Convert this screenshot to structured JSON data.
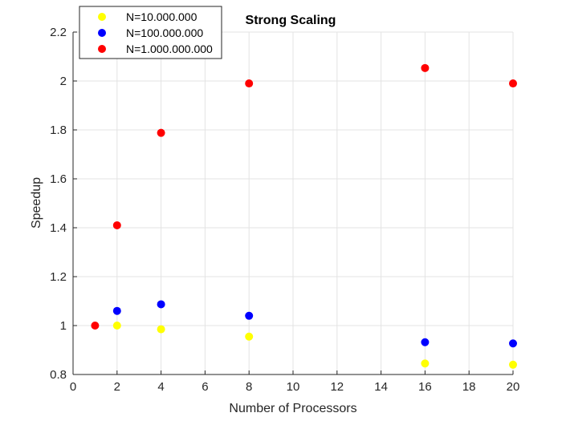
{
  "chart_data": {
    "type": "scatter",
    "title": "Strong Scaling",
    "xlabel": "Number of Processors",
    "ylabel": "Speedup",
    "xlim": [
      0,
      20
    ],
    "ylim": [
      0.8,
      2.2
    ],
    "xticks": [
      "0",
      "2",
      "4",
      "6",
      "8",
      "10",
      "12",
      "14",
      "16",
      "18",
      "20"
    ],
    "yticks": [
      "0.8",
      "1",
      "1.2",
      "1.4",
      "1.6",
      "1.8",
      "2",
      "2.2"
    ],
    "grid": true,
    "legend_position": "top-left",
    "series": [
      {
        "name": "N=10.000.000",
        "color": "#ffff00",
        "points": [
          [
            2,
            1.0
          ],
          [
            4,
            0.985
          ],
          [
            8,
            0.955
          ],
          [
            16,
            0.845
          ],
          [
            20,
            0.84
          ]
        ]
      },
      {
        "name": "N=100.000.000",
        "color": "#0000ff",
        "points": [
          [
            2,
            1.06
          ],
          [
            4,
            1.087
          ],
          [
            8,
            1.04
          ],
          [
            16,
            0.932
          ],
          [
            20,
            0.927
          ]
        ]
      },
      {
        "name": "N=1.000.000.000",
        "color": "#ff0000",
        "points": [
          [
            1,
            1.0
          ],
          [
            2,
            1.41
          ],
          [
            4,
            1.788
          ],
          [
            8,
            1.99
          ],
          [
            16,
            2.053
          ],
          [
            20,
            1.99
          ]
        ]
      }
    ]
  }
}
